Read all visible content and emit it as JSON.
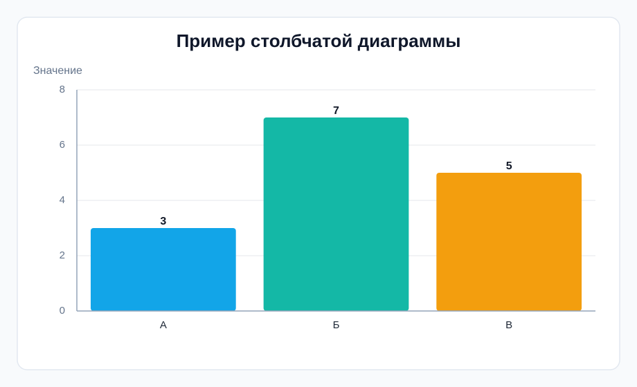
{
  "chart_data": {
    "type": "bar",
    "title": "Пример столбчатой диаграммы",
    "y_label": "Значение",
    "categories": [
      "А",
      "Б",
      "В"
    ],
    "values": [
      3,
      7,
      5
    ],
    "colors": [
      "#12a5e8",
      "#14b8a6",
      "#f39e0e"
    ],
    "ylim": [
      0,
      8
    ],
    "yticks": [
      0,
      2,
      4,
      6,
      8
    ],
    "grid": true
  }
}
